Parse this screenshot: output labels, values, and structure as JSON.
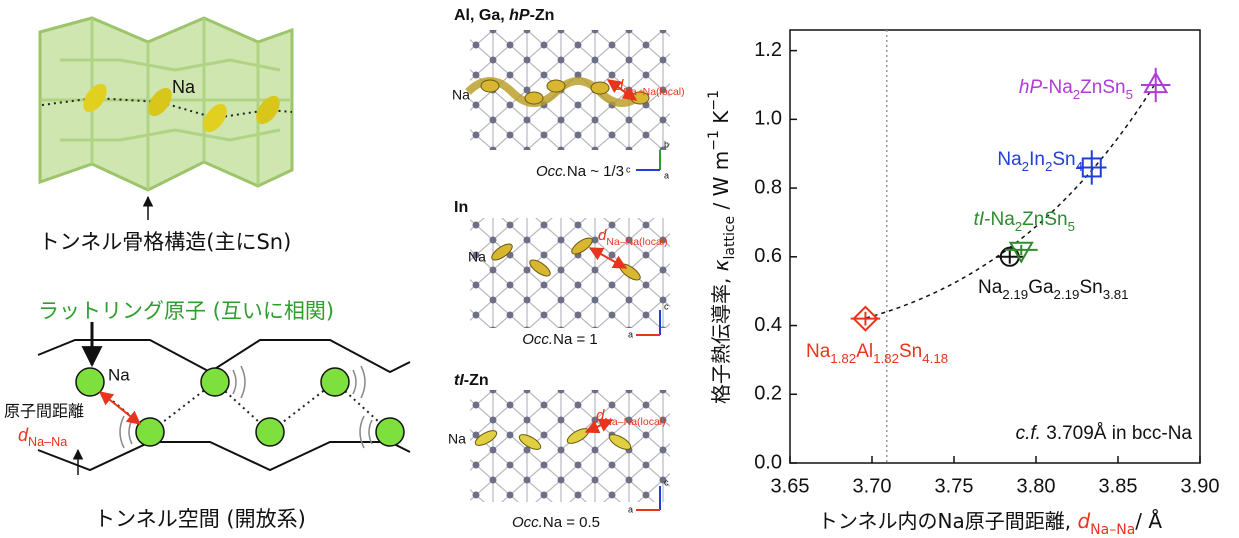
{
  "left_panel": {
    "tunnel_na": "Na",
    "tunnel_caption": "トンネル骨格構造(主にSn)",
    "rattling_caption": "ラットリング原子 (互いに相関)",
    "rattling_na": "Na",
    "distance_label": "原子間距離",
    "distance_symbol": [
      {
        "text": "d",
        "style": "italic",
        "color": "#e8341c"
      },
      {
        "text": "Na–Na",
        "style": "sub",
        "color": "#e8341c"
      }
    ],
    "space_caption": "トンネル空間 (開放系)"
  },
  "middle_panel": {
    "structures": [
      {
        "heading": [
          {
            "text": "Al, Ga, ",
            "style": "bold"
          },
          {
            "text": "hP",
            "style": "bold-italic"
          },
          {
            "text": "-Zn",
            "style": "bold"
          }
        ],
        "na": "Na",
        "distance": [
          {
            "text": "d",
            "style": "italic",
            "color": "#e8341c"
          },
          {
            "text": "Na–Na(local)",
            "style": "sub",
            "color": "#e8341c"
          }
        ],
        "occupancy": [
          {
            "text": "Occ.",
            "style": "italic"
          },
          {
            "text": "Na ~ 1/3"
          }
        ],
        "axes": [
          "b",
          "c",
          "a"
        ]
      },
      {
        "heading": [
          {
            "text": "In",
            "style": "bold"
          }
        ],
        "na": "Na",
        "distance": [
          {
            "text": "d",
            "style": "italic",
            "color": "#e8341c"
          },
          {
            "text": "Na–Na(local)",
            "style": "sub",
            "color": "#e8341c"
          }
        ],
        "occupancy": [
          {
            "text": "Occ.",
            "style": "italic"
          },
          {
            "text": "Na = 1"
          }
        ],
        "axes": [
          "c",
          "a"
        ]
      },
      {
        "heading": [
          {
            "text": "tI",
            "style": "bold-italic"
          },
          {
            "text": "-Zn",
            "style": "bold"
          }
        ],
        "na": "Na",
        "distance": [
          {
            "text": "d",
            "style": "italic",
            "color": "#e8341c"
          },
          {
            "text": "Na–Na(local)",
            "style": "sub",
            "color": "#e8341c"
          }
        ],
        "occupancy": [
          {
            "text": "Occ.",
            "style": "italic"
          },
          {
            "text": "Na = 0.5"
          }
        ],
        "axes": [
          "c",
          "a"
        ]
      }
    ]
  },
  "chart_data": {
    "type": "scatter",
    "x_label": [
      {
        "text": "トンネル内のNa原子間距離, "
      },
      {
        "text": "d",
        "style": "italic",
        "color": "#e8341c"
      },
      {
        "text": "Na–Na",
        "style": "sub",
        "color": "#e8341c"
      },
      {
        "text": "/ Å"
      }
    ],
    "y_label": [
      {
        "text": "格子熱伝導率, "
      },
      {
        "text": "κ",
        "style": "italic"
      },
      {
        "text": "lattice",
        "style": "sub"
      },
      {
        "text": " / W m"
      },
      {
        "text": "−1",
        "style": "sup"
      },
      {
        "text": " K"
      },
      {
        "text": "−1",
        "style": "sup"
      }
    ],
    "xlim": [
      3.65,
      3.9
    ],
    "ylim": [
      0,
      1.26
    ],
    "xticks": [
      3.65,
      {
        "value": 3.7,
        "label": "3.70"
      },
      3.75,
      {
        "value": 3.8,
        "label": "3.80"
      },
      3.85,
      {
        "value": 3.9,
        "label": "3.90"
      }
    ],
    "yticks": [
      {
        "value": 0,
        "label": "0.0"
      },
      0.2,
      0.4,
      0.6,
      0.8,
      {
        "value": 1,
        "label": "1.0"
      },
      1.2
    ],
    "reference_x": 3.709,
    "annotation": [
      {
        "text": "c.f.",
        "style": "italic"
      },
      {
        "text": " 3.709Å in bcc-Na"
      }
    ],
    "series": [
      {
        "label": [
          {
            "text": "Na"
          },
          {
            "text": "1.82",
            "style": "sub"
          },
          {
            "text": "Al"
          },
          {
            "text": "1.82",
            "style": "sub"
          },
          {
            "text": "Sn"
          },
          {
            "text": "4.18",
            "style": "sub"
          }
        ],
        "color": "#e8341c",
        "marker": "diamond",
        "x": [
          3.696
        ],
        "values": [
          0.42
        ],
        "xerr": [
          0.009
        ],
        "yerr": [
          0.02
        ]
      },
      {
        "label": [
          {
            "text": "Na"
          },
          {
            "text": "2.19",
            "style": "sub"
          },
          {
            "text": "Ga"
          },
          {
            "text": "2.19",
            "style": "sub"
          },
          {
            "text": "Sn"
          },
          {
            "text": "3.81",
            "style": "sub"
          }
        ],
        "color": "#111111",
        "marker": "circle",
        "x": [
          3.784
        ],
        "values": [
          0.6
        ],
        "xerr": [
          0.008
        ],
        "yerr": [
          0.02
        ]
      },
      {
        "label": [
          {
            "text": "tI",
            "style": "italic"
          },
          {
            "text": "-Na"
          },
          {
            "text": "2",
            "style": "sub"
          },
          {
            "text": "ZnSn"
          },
          {
            "text": "5",
            "style": "sub"
          }
        ],
        "color": "#2e8b2e",
        "marker": "triangle-down",
        "x": [
          3.791
        ],
        "values": [
          0.62
        ],
        "xerr": [
          0.01
        ],
        "yerr": [
          0.015
        ]
      },
      {
        "label": [
          {
            "text": "Na"
          },
          {
            "text": "2",
            "style": "sub"
          },
          {
            "text": "In"
          },
          {
            "text": "2",
            "style": "sub"
          },
          {
            "text": "Sn"
          },
          {
            "text": "4",
            "style": "sub"
          }
        ],
        "color": "#1f3fd8",
        "marker": "square",
        "x": [
          3.834
        ],
        "values": [
          0.86
        ],
        "xerr": [
          0.009
        ],
        "yerr": [
          0.05
        ]
      },
      {
        "label": [
          {
            "text": "hP",
            "style": "italic"
          },
          {
            "text": "-Na"
          },
          {
            "text": "2",
            "style": "sub"
          },
          {
            "text": "ZnSn"
          },
          {
            "text": "5",
            "style": "sub"
          }
        ],
        "color": "#b03cd8",
        "marker": "triangle-up",
        "x": [
          3.873
        ],
        "values": [
          1.1
        ],
        "xerr": [
          0.009
        ],
        "yerr": [
          0.05
        ]
      }
    ]
  }
}
